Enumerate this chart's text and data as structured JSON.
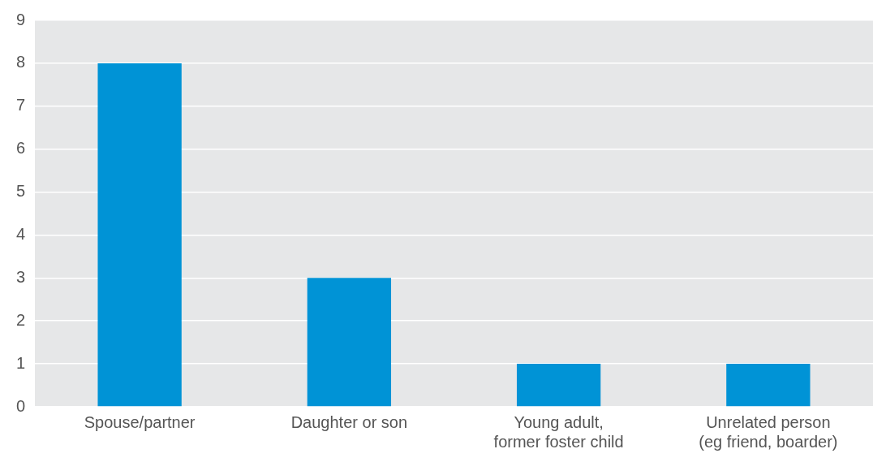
{
  "chart_data": {
    "type": "bar",
    "categories": [
      "Spouse/partner",
      "Daughter or son",
      "Young adult,\nformer foster child",
      "Unrelated person\n(eg friend, boarder)"
    ],
    "values": [
      8,
      3,
      1,
      1
    ],
    "color": "#0093d6",
    "ylim": [
      0,
      9
    ],
    "yticks": [
      0,
      1,
      2,
      3,
      4,
      5,
      6,
      7,
      8,
      9
    ],
    "grid": "y"
  }
}
